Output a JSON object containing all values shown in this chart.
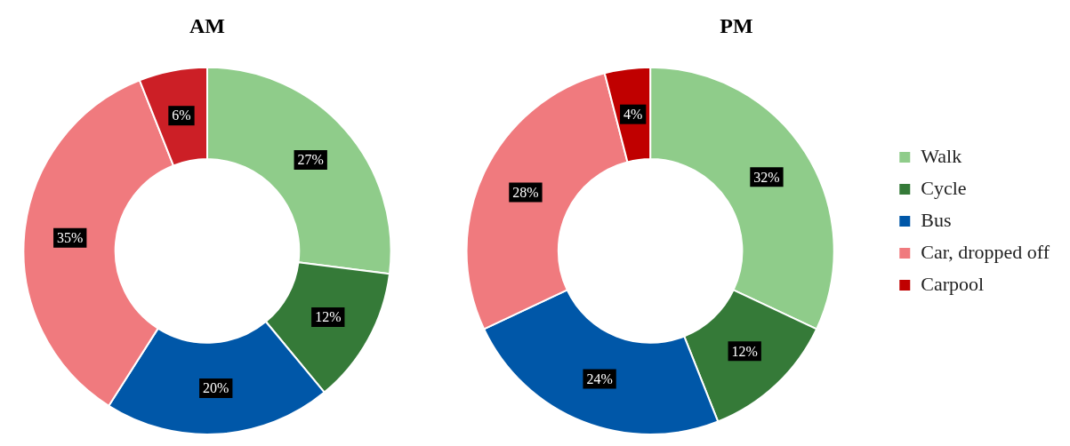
{
  "chart_data": [
    {
      "type": "donut",
      "title": "AM",
      "categories": [
        null,
        null,
        null,
        null,
        null
      ],
      "values": [
        27,
        12,
        20,
        35,
        6
      ],
      "colors": [
        "#8fcc8a",
        "#357a38",
        "#0057a8",
        "#f07a7e",
        "#cc1f26"
      ],
      "value_labels": [
        "27%",
        "12%",
        "20%",
        "35%",
        "6%"
      ],
      "legend": false
    },
    {
      "type": "donut",
      "title": "PM",
      "categories": [
        "Walk",
        "Cycle",
        "Bus",
        "Car, dropped off",
        "Carpool"
      ],
      "values": [
        32,
        12,
        24,
        28,
        4
      ],
      "colors": [
        "#8fcc8a",
        "#357a38",
        "#0057a8",
        "#f07a7e",
        "#c00000"
      ],
      "value_labels": [
        "32%",
        "12%",
        "24%",
        "28%",
        "4%"
      ],
      "legend": "right"
    }
  ]
}
